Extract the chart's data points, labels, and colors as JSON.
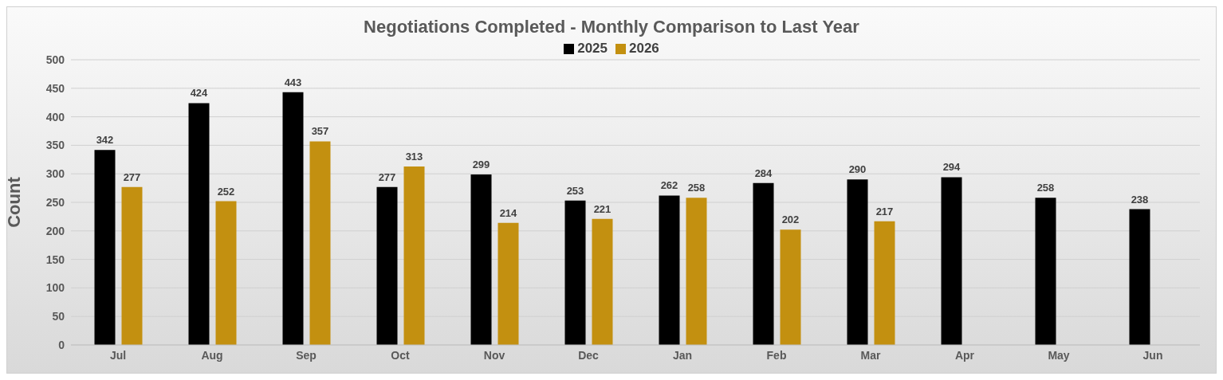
{
  "chart_data": {
    "type": "bar",
    "title": "Negotiations Completed - Monthly Comparison to Last Year",
    "ylabel": "Count",
    "categories": [
      "Jul",
      "Aug",
      "Sep",
      "Oct",
      "Nov",
      "Dec",
      "Jan",
      "Feb",
      "Mar",
      "Apr",
      "May",
      "Jun"
    ],
    "series": [
      {
        "name": "2025",
        "color": "#000000",
        "values": [
          342,
          424,
          443,
          277,
          299,
          253,
          262,
          284,
          290,
          294,
          258,
          238
        ]
      },
      {
        "name": "2026",
        "color": "#c39010",
        "values": [
          277,
          252,
          357,
          313,
          214,
          221,
          258,
          202,
          217,
          null,
          null,
          null
        ]
      }
    ],
    "ylim": [
      0,
      500
    ],
    "yticks": [
      0,
      50,
      100,
      150,
      200,
      250,
      300,
      350,
      400,
      450,
      500
    ],
    "grid": "y",
    "legend": "top",
    "data_labels": true
  }
}
